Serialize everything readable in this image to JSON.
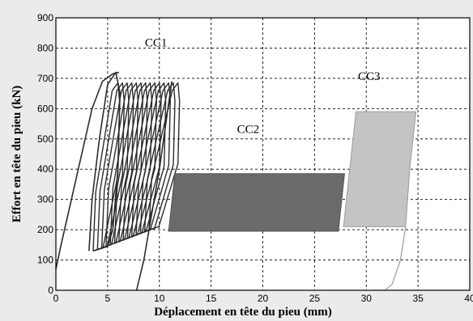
{
  "chart_data": {
    "type": "line",
    "title": "",
    "xlabel": "Déplacement en tête du pieu (mm)",
    "ylabel": "Effort en tête du pieu (kN)",
    "xlim": [
      0,
      40
    ],
    "ylim": [
      0,
      900
    ],
    "x_ticks": [
      "0",
      "5",
      "10",
      "15",
      "20",
      "25",
      "30",
      "35",
      "40"
    ],
    "y_ticks": [
      "0",
      "100",
      "200",
      "300",
      "400",
      "500",
      "600",
      "700",
      "800",
      "900"
    ],
    "grid": true,
    "legend": "none",
    "background_color": "#ffffff",
    "annotations": [
      {
        "text": "CC1",
        "x": 8.6,
        "y": 805
      },
      {
        "text": "CC2",
        "x": 17.5,
        "y": 520
      },
      {
        "text": "CC3",
        "x": 29.2,
        "y": 695
      }
    ],
    "series": [
      {
        "label": "CC1",
        "color": "#2b2b2b",
        "kind": "cyclic loops",
        "initial_loading": [
          [
            0,
            70
          ],
          [
            0.5,
            150
          ],
          [
            1.5,
            300
          ],
          [
            2.5,
            450
          ],
          [
            3.5,
            600
          ],
          [
            4.5,
            690
          ],
          [
            5.5,
            715
          ],
          [
            6.1,
            720
          ]
        ],
        "first_loop": [
          [
            3.2,
            130
          ],
          [
            3.5,
            300
          ],
          [
            4.2,
            500
          ],
          [
            5.0,
            680
          ],
          [
            5.8,
            720
          ],
          [
            6.2,
            650
          ],
          [
            6.0,
            400
          ],
          [
            5.5,
            200
          ],
          [
            5.0,
            145
          ],
          [
            3.6,
            130
          ]
        ],
        "cycles": {
          "count": 14,
          "x_min_start": 3.6,
          "x_min_end": 9.0,
          "x_max_start": 6.0,
          "x_max_end": 11.8,
          "load_min_start": 130,
          "load_min_end": 200,
          "load_max": 685
        },
        "unloading": [
          [
            11.2,
            690
          ],
          [
            10.0,
            400
          ],
          [
            8.5,
            100
          ],
          [
            7.8,
            0
          ]
        ]
      },
      {
        "label": "CC2",
        "color": "#6a6a6a",
        "kind": "cyclic loops",
        "band": [
          [
            10.9,
            195
          ],
          [
            11.5,
            385
          ],
          [
            27.9,
            385
          ],
          [
            27.3,
            195
          ]
        ],
        "load_min": 195,
        "load_max": 385,
        "x_start": 10.9,
        "x_end": 27.9,
        "unloading": [
          [
            27.9,
            385
          ],
          [
            27.3,
            195
          ]
        ]
      },
      {
        "label": "CC3",
        "color": "#c4c4c4",
        "kind": "cyclic loops",
        "band": [
          [
            27.8,
            210
          ],
          [
            28.4,
            400
          ],
          [
            29.0,
            590
          ],
          [
            34.8,
            590
          ],
          [
            34.2,
            400
          ],
          [
            33.8,
            210
          ]
        ],
        "load_min": 210,
        "load_max": 590,
        "x_start": 27.8,
        "x_end": 34.8,
        "unloading": [
          [
            33.8,
            210
          ],
          [
            33.3,
            100
          ],
          [
            32.5,
            20
          ],
          [
            31.8,
            0
          ]
        ]
      }
    ]
  }
}
